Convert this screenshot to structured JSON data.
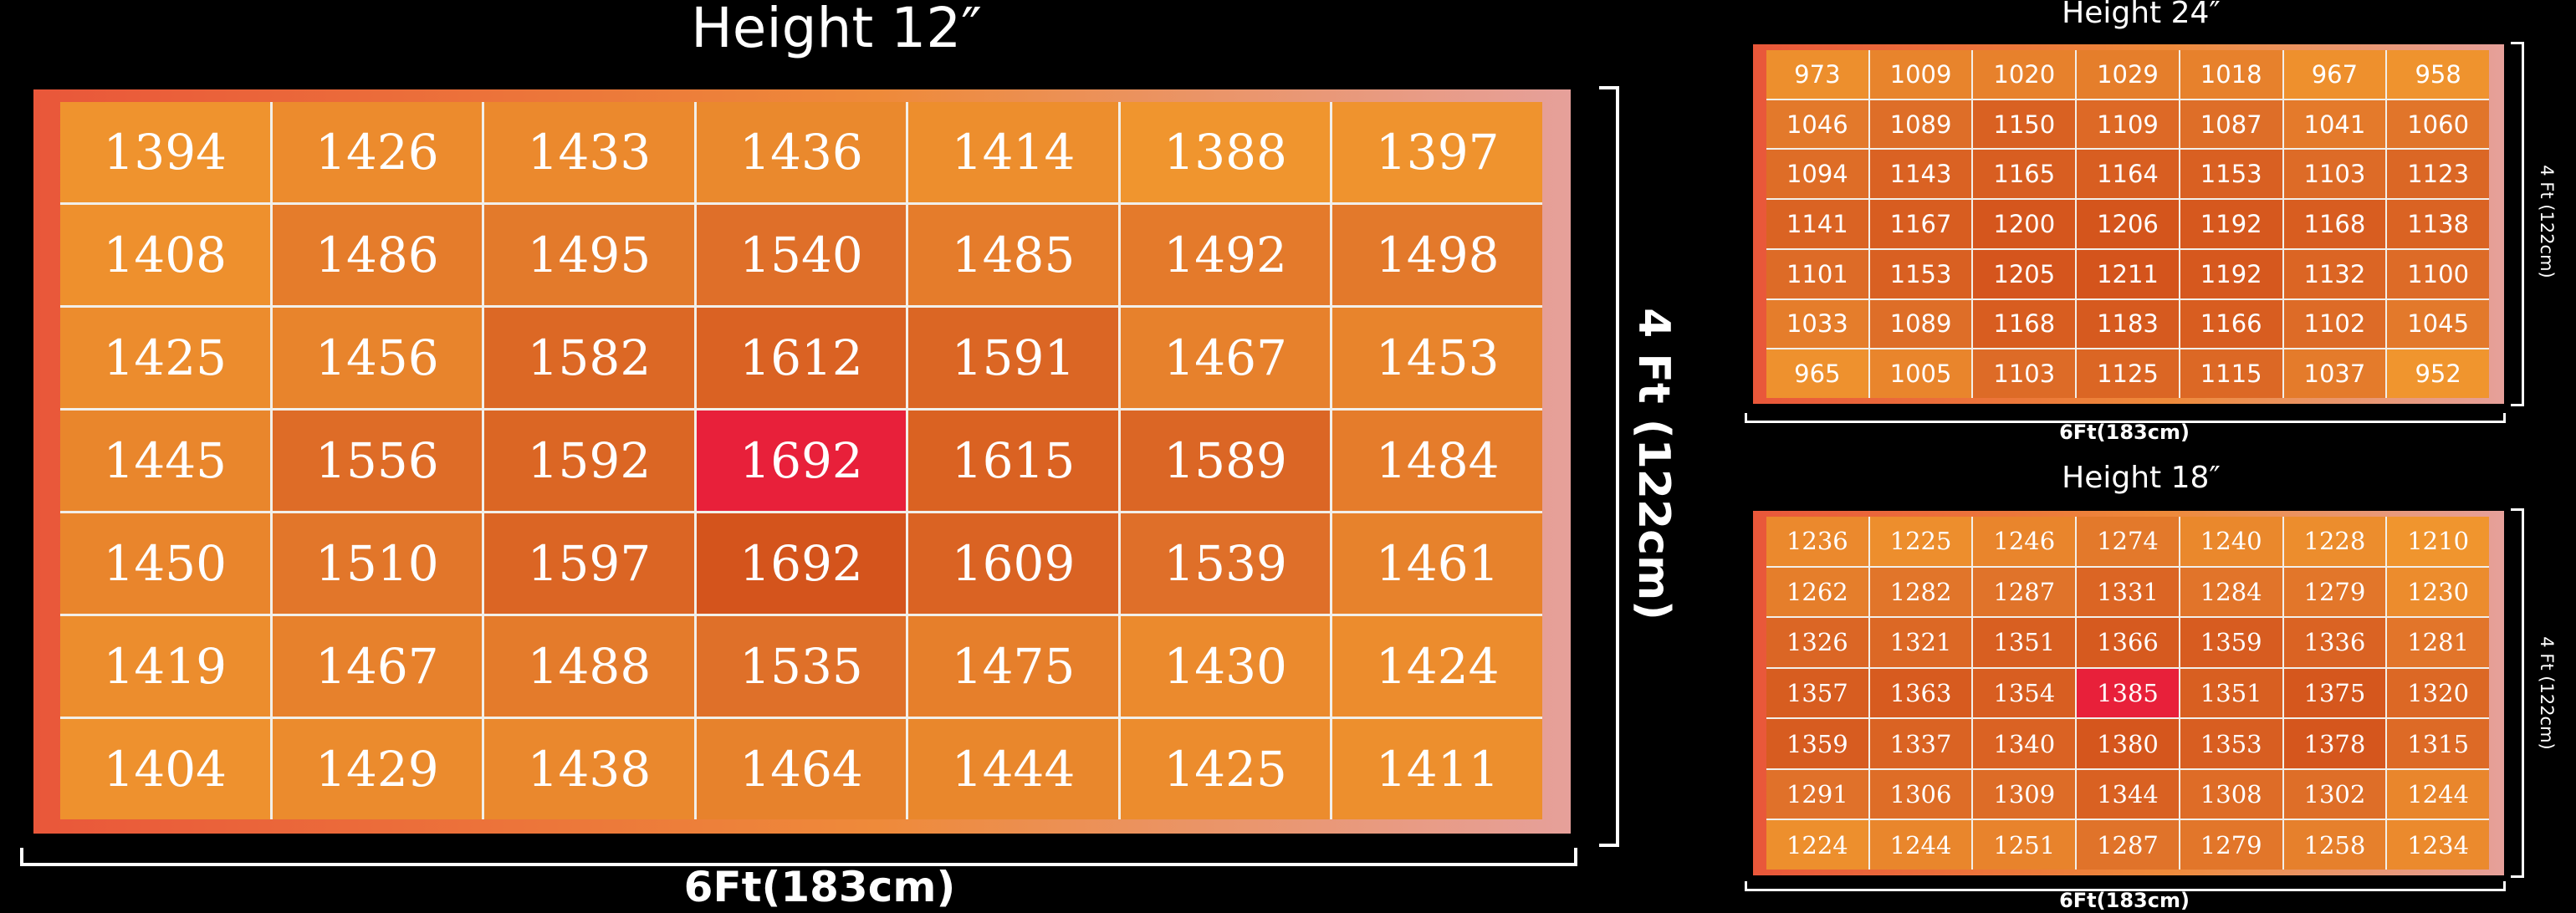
{
  "chart_data": [
    {
      "type": "heatmap",
      "title": "Height 12″",
      "xlabel": "6Ft(183cm)",
      "ylabel": "4 Ft (122cm)",
      "values": [
        [
          1394,
          1426,
          1433,
          1436,
          1414,
          1388,
          1397
        ],
        [
          1408,
          1486,
          1495,
          1540,
          1485,
          1492,
          1498
        ],
        [
          1425,
          1456,
          1582,
          1612,
          1591,
          1467,
          1453
        ],
        [
          1445,
          1556,
          1592,
          1692,
          1615,
          1589,
          1484
        ],
        [
          1450,
          1510,
          1597,
          1692,
          1609,
          1539,
          1461
        ],
        [
          1419,
          1467,
          1488,
          1535,
          1475,
          1430,
          1424
        ],
        [
          1404,
          1429,
          1438,
          1464,
          1444,
          1425,
          1411
        ]
      ]
    },
    {
      "type": "heatmap",
      "title": "Height 24″",
      "xlabel": "6Ft(183cm)",
      "ylabel": "4 Ft (122cm)",
      "values": [
        [
          973,
          1009,
          1020,
          1029,
          1018,
          967,
          958
        ],
        [
          1046,
          1089,
          1150,
          1109,
          1087,
          1041,
          1060
        ],
        [
          1094,
          1143,
          1165,
          1164,
          1153,
          1103,
          1123
        ],
        [
          1141,
          1167,
          1200,
          1206,
          1192,
          1168,
          1138
        ],
        [
          1101,
          1153,
          1205,
          1211,
          1192,
          1132,
          1100
        ],
        [
          1033,
          1089,
          1168,
          1183,
          1166,
          1102,
          1045
        ],
        [
          965,
          1005,
          1103,
          1125,
          1115,
          1037,
          952
        ]
      ]
    },
    {
      "type": "heatmap",
      "title": "Height 18″",
      "xlabel": "6Ft(183cm)",
      "ylabel": "4 Ft (122cm)",
      "values": [
        [
          1236,
          1225,
          1246,
          1274,
          1240,
          1228,
          1210
        ],
        [
          1262,
          1282,
          1287,
          1331,
          1284,
          1279,
          1230
        ],
        [
          1326,
          1321,
          1351,
          1366,
          1359,
          1336,
          1281
        ],
        [
          1357,
          1363,
          1354,
          1385,
          1351,
          1375,
          1320
        ],
        [
          1359,
          1337,
          1340,
          1380,
          1353,
          1378,
          1315
        ],
        [
          1291,
          1306,
          1309,
          1344,
          1308,
          1302,
          1244
        ],
        [
          1224,
          1244,
          1251,
          1287,
          1279,
          1258,
          1234
        ]
      ]
    }
  ],
  "colors": {
    "background": "#000000",
    "low": "#f0952e",
    "mid": "#e0722a",
    "high": "#d4541c",
    "peak": "#e8203a",
    "grid_line": "#f2efe9"
  }
}
